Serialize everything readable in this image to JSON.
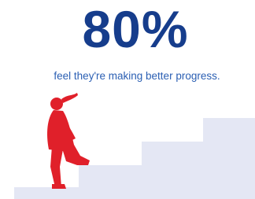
{
  "stat": {
    "value": "80%",
    "caption": "feel they're making better progress."
  }
}
